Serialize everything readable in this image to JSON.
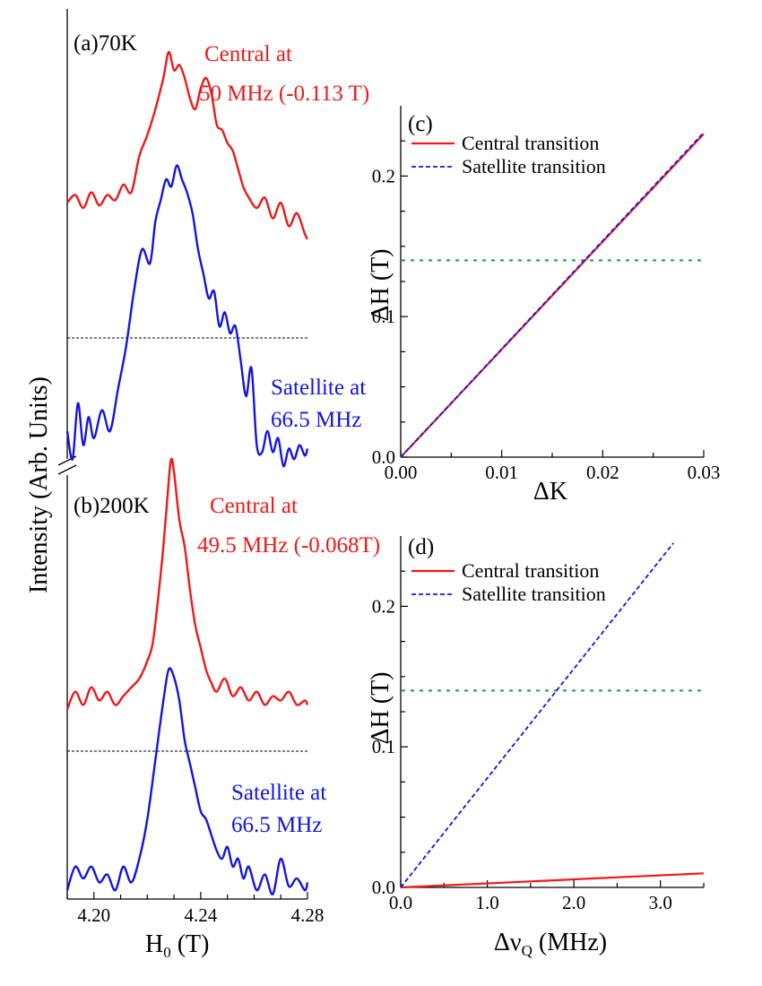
{
  "figure_y_label": "Intensity (Arb. Units)",
  "colors": {
    "central": "#f01818",
    "satellite": "#1414e0",
    "threshold": "#3c9a78",
    "baseline": "#000000"
  },
  "chart_data": [
    {
      "panel": "a",
      "type": "line",
      "title": "(a)70K",
      "xlabel": "H0 (T)",
      "ylabel": "Intensity (Arb. Units)",
      "xlim": [
        4.19,
        4.28
      ],
      "series": [
        {
          "name": "Central",
          "annotation": [
            "Central at",
            "50 MHz (-0.113 T)"
          ],
          "x": [
            4.19,
            4.193,
            4.196,
            4.199,
            4.202,
            4.205,
            4.208,
            4.211,
            4.214,
            4.217,
            4.22,
            4.223,
            4.226,
            4.228,
            4.23,
            4.232,
            4.234,
            4.236,
            4.238,
            4.24,
            4.242,
            4.244,
            4.246,
            4.248,
            4.25,
            4.252,
            4.254,
            4.256,
            4.258,
            4.261,
            4.264,
            4.267,
            4.27,
            4.273,
            4.276,
            4.279,
            4.28
          ],
          "y": [
            0.42,
            0.45,
            0.4,
            0.46,
            0.41,
            0.45,
            0.43,
            0.49,
            0.46,
            0.6,
            0.68,
            0.78,
            0.9,
            1.0,
            0.93,
            0.95,
            0.9,
            0.82,
            0.78,
            0.86,
            0.9,
            0.84,
            0.72,
            0.7,
            0.65,
            0.62,
            0.55,
            0.48,
            0.44,
            0.4,
            0.44,
            0.36,
            0.42,
            0.33,
            0.38,
            0.3,
            0.28
          ]
        },
        {
          "name": "Satellite",
          "annotation": [
            "Satellite at",
            "66.5 MHz"
          ],
          "x": [
            4.19,
            4.192,
            4.194,
            4.196,
            4.198,
            4.2,
            4.203,
            4.206,
            4.209,
            4.212,
            4.215,
            4.218,
            4.221,
            4.223,
            4.225,
            4.227,
            4.229,
            4.231,
            4.233,
            4.235,
            4.237,
            4.239,
            4.241,
            4.243,
            4.245,
            4.247,
            4.249,
            4.251,
            4.253,
            4.255,
            4.257,
            4.259,
            4.261,
            4.263,
            4.265,
            4.267,
            4.269,
            4.271,
            4.273,
            4.275,
            4.277,
            4.279,
            4.28
          ],
          "y": [
            0.1,
            0.02,
            0.18,
            0.06,
            0.14,
            0.08,
            0.16,
            0.1,
            0.22,
            0.34,
            0.5,
            0.62,
            0.58,
            0.7,
            0.76,
            0.82,
            0.8,
            0.86,
            0.82,
            0.78,
            0.72,
            0.62,
            0.55,
            0.48,
            0.5,
            0.4,
            0.44,
            0.38,
            0.4,
            0.3,
            0.2,
            0.28,
            0.06,
            0.04,
            0.1,
            0.04,
            0.08,
            0.0,
            0.05,
            0.02,
            0.06,
            0.03,
            0.05
          ]
        }
      ]
    },
    {
      "panel": "b",
      "type": "line",
      "title": "(b)200K",
      "xlabel": "H0 (T)",
      "ylabel": "Intensity (Arb. Units)",
      "xlim": [
        4.19,
        4.28
      ],
      "x_ticks": [
        "4.20",
        "4.24",
        "4.28"
      ],
      "series": [
        {
          "name": "Central",
          "annotation": [
            "Central at",
            "49.5 MHz (-0.068T)"
          ],
          "x": [
            4.19,
            4.193,
            4.196,
            4.199,
            4.202,
            4.205,
            4.208,
            4.211,
            4.214,
            4.217,
            4.22,
            4.222,
            4.224,
            4.226,
            4.228,
            4.229,
            4.23,
            4.232,
            4.234,
            4.236,
            4.238,
            4.24,
            4.242,
            4.244,
            4.246,
            4.249,
            4.252,
            4.255,
            4.258,
            4.261,
            4.264,
            4.267,
            4.27,
            4.273,
            4.276,
            4.279,
            4.28
          ],
          "y": [
            0.43,
            0.47,
            0.44,
            0.48,
            0.45,
            0.47,
            0.44,
            0.46,
            0.48,
            0.5,
            0.54,
            0.58,
            0.68,
            0.8,
            0.95,
            1.0,
            0.97,
            0.86,
            0.8,
            0.7,
            0.62,
            0.57,
            0.52,
            0.49,
            0.47,
            0.5,
            0.46,
            0.48,
            0.45,
            0.47,
            0.44,
            0.46,
            0.45,
            0.47,
            0.44,
            0.45,
            0.44
          ]
        },
        {
          "name": "Satellite",
          "annotation": [
            "Satellite at",
            "66.5 MHz"
          ],
          "x": [
            4.19,
            4.193,
            4.196,
            4.199,
            4.202,
            4.205,
            4.208,
            4.211,
            4.214,
            4.217,
            4.22,
            4.223,
            4.226,
            4.228,
            4.23,
            4.232,
            4.234,
            4.236,
            4.238,
            4.24,
            4.242,
            4.244,
            4.246,
            4.248,
            4.25,
            4.252,
            4.254,
            4.256,
            4.258,
            4.261,
            4.264,
            4.267,
            4.27,
            4.273,
            4.276,
            4.279,
            4.28
          ],
          "y": [
            0.02,
            0.08,
            0.05,
            0.08,
            0.04,
            0.06,
            0.02,
            0.08,
            0.04,
            0.1,
            0.2,
            0.35,
            0.5,
            0.58,
            0.56,
            0.5,
            0.4,
            0.34,
            0.28,
            0.22,
            0.2,
            0.16,
            0.12,
            0.1,
            0.13,
            0.08,
            0.1,
            0.05,
            0.08,
            0.02,
            0.06,
            0.01,
            0.1,
            0.03,
            0.05,
            0.02,
            0.04
          ]
        }
      ]
    },
    {
      "panel": "c",
      "type": "line",
      "title": "(c)",
      "xlabel": "ΔK",
      "ylabel": "ΔH (T)",
      "xlim": [
        0,
        0.03
      ],
      "ylim": [
        0,
        0.25
      ],
      "x_ticks": [
        "0.00",
        "0.01",
        "0.02",
        "0.03"
      ],
      "y_ticks": [
        "0.0",
        "0.1",
        "0.2"
      ],
      "threshold": 0.14,
      "series": [
        {
          "name": "Central transition",
          "style": "solid",
          "x": [
            0,
            0.03
          ],
          "y": [
            0,
            0.23
          ]
        },
        {
          "name": "Satellite transition",
          "style": "dashed",
          "x": [
            0,
            0.03
          ],
          "y": [
            0,
            0.231
          ]
        }
      ]
    },
    {
      "panel": "d",
      "type": "line",
      "title": "(d)",
      "xlabel": "ΔνQ (MHz)",
      "xlabel_main": "Δν",
      "xlabel_sub": "Q",
      "xlabel_unit": " (MHz)",
      "ylabel": "ΔH (T)",
      "xlim": [
        0,
        3.5
      ],
      "ylim": [
        0,
        0.25
      ],
      "x_ticks": [
        "0.0",
        "1.0",
        "2.0",
        "3.0"
      ],
      "y_ticks": [
        "0.0",
        "0.1",
        "0.2"
      ],
      "threshold": 0.14,
      "series": [
        {
          "name": "Central transition",
          "style": "solid",
          "x": [
            0,
            3.5
          ],
          "y": [
            0,
            0.01
          ]
        },
        {
          "name": "Satellite transition",
          "style": "dashed",
          "x": [
            0,
            3.15
          ],
          "y": [
            0,
            0.245
          ]
        }
      ]
    }
  ]
}
